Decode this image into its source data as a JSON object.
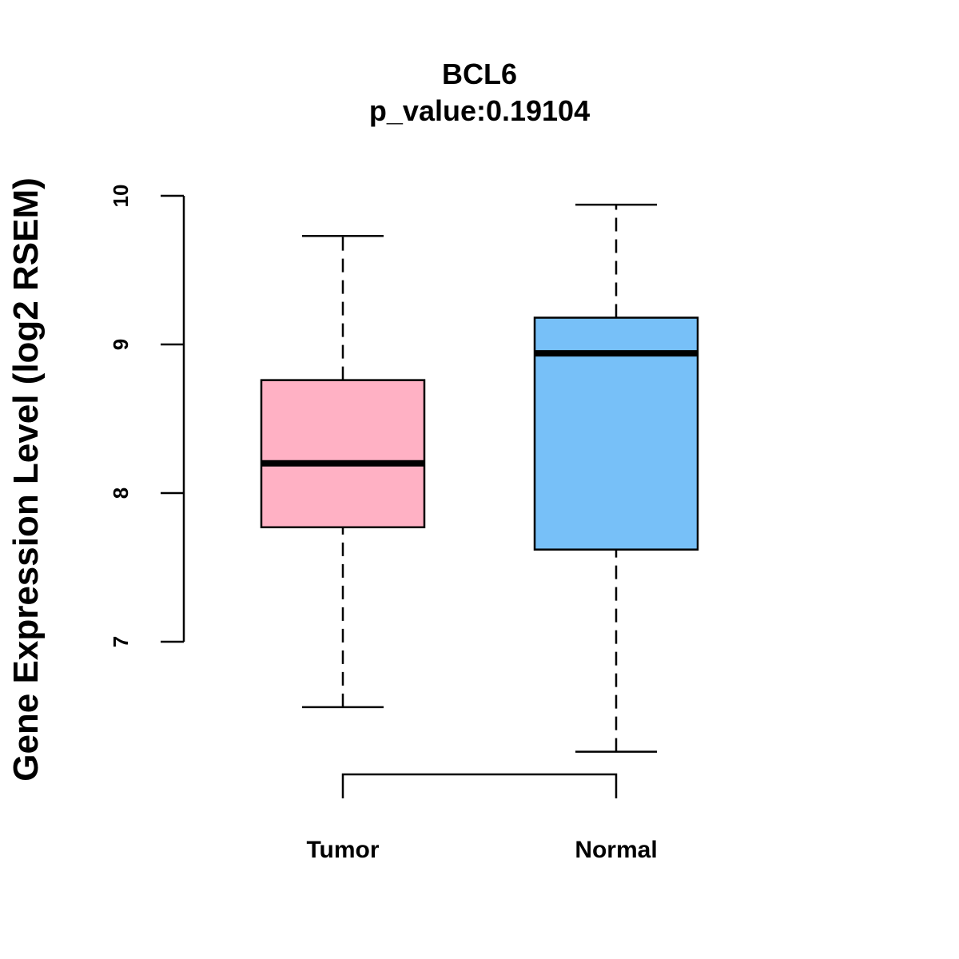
{
  "chart_data": {
    "type": "box",
    "title": "BCL6",
    "subtitle": "p_value:0.19104",
    "xlabel": "",
    "ylabel": "Gene Expression Level (log2 RSEM)",
    "ylim": [
      7,
      10
    ],
    "yticks": [
      "7",
      "8",
      "9",
      "10"
    ],
    "categories": [
      "Tumor",
      "Normal"
    ],
    "series": [
      {
        "name": "Tumor",
        "color": "#FFB1C4",
        "whisker_low": 6.56,
        "q1": 7.77,
        "median": 8.2,
        "q3": 8.76,
        "whisker_high": 9.73
      },
      {
        "name": "Normal",
        "color": "#77C0F8",
        "whisker_low": 6.26,
        "q1": 7.62,
        "median": 8.94,
        "q3": 9.18,
        "whisker_high": 9.94
      }
    ],
    "comparison_bracket": [
      "Tumor",
      "Normal"
    ]
  }
}
